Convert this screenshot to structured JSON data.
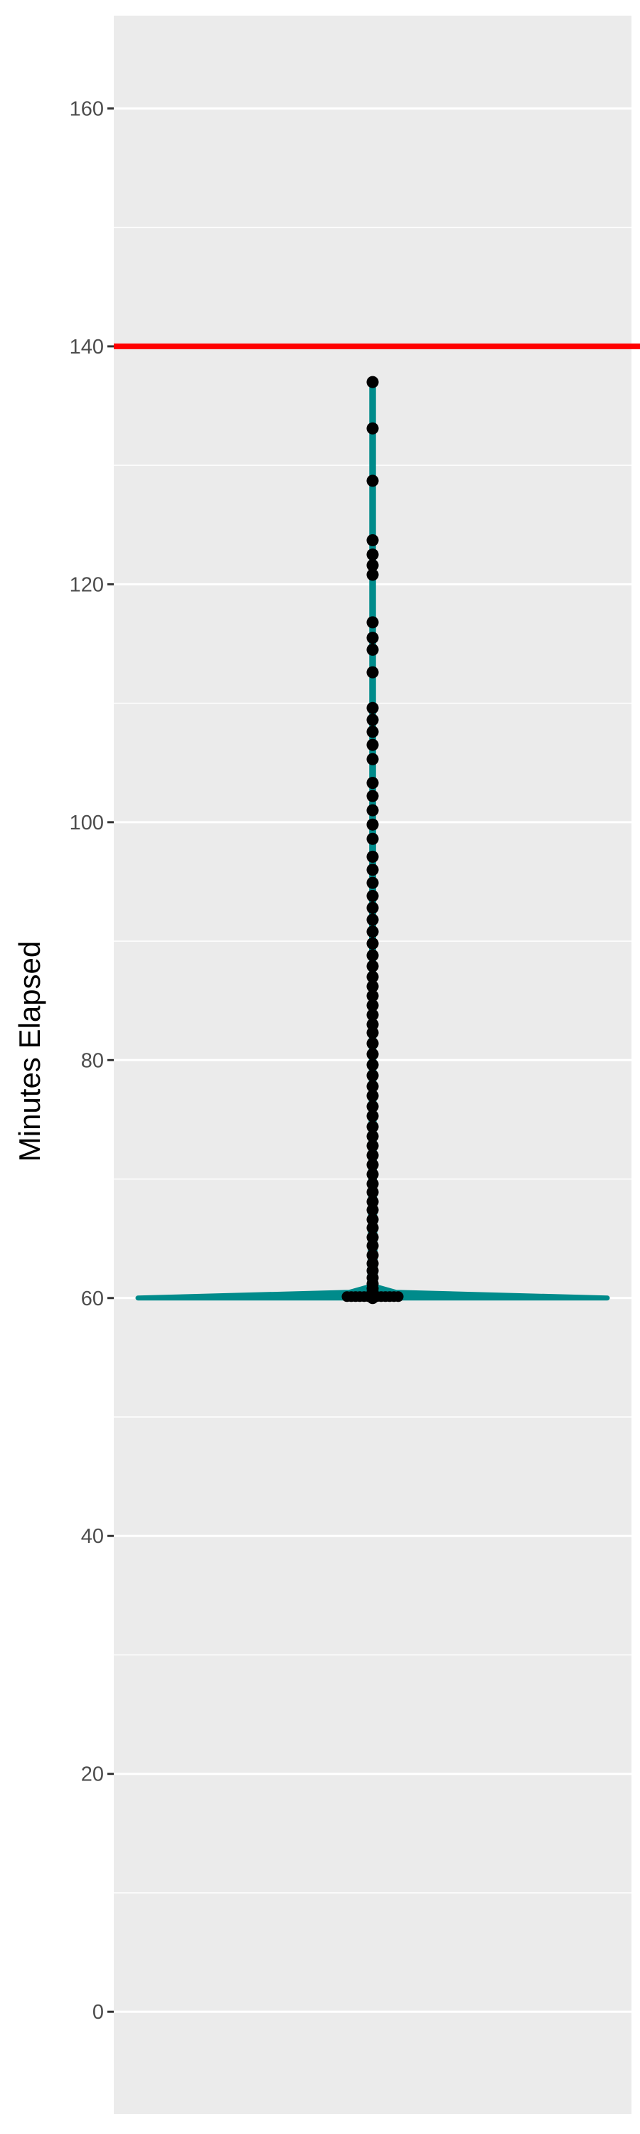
{
  "chart_data": {
    "type": "violin-with-points",
    "title": "",
    "xlabel": "",
    "ylabel": "Minutes Elapsed",
    "ylim": [
      -8.6,
      167.8
    ],
    "yticks": [
      0,
      20,
      40,
      60,
      80,
      100,
      120,
      140,
      160
    ],
    "ytick_labels": [
      "0",
      "20",
      "40",
      "60",
      "80",
      "100",
      "120",
      "140",
      "160"
    ],
    "grid": true,
    "reference_line": {
      "y": 140,
      "color": "#ff0000"
    },
    "violin": {
      "color": "#008b8b",
      "min": 60,
      "max": 137,
      "mode": 60.2
    },
    "points": [
      60.0,
      60.1,
      60.2,
      60.3,
      60.5,
      60.8,
      61.2,
      61.7,
      62.3,
      62.9,
      63.6,
      64.4,
      65.1,
      65.9,
      66.6,
      67.4,
      68.1,
      68.9,
      69.6,
      70.4,
      71.2,
      72.0,
      72.8,
      73.6,
      74.4,
      75.3,
      76.1,
      77.0,
      77.8,
      78.7,
      79.6,
      80.5,
      81.4,
      82.3,
      83.0,
      83.8,
      84.6,
      85.4,
      86.2,
      87.0,
      87.9,
      88.8,
      89.8,
      90.8,
      91.8,
      92.8,
      93.8,
      94.9,
      96.0,
      97.1,
      98.6,
      99.8,
      101.0,
      102.2,
      103.3,
      105.3,
      106.5,
      107.6,
      108.6,
      109.6,
      112.6,
      114.5,
      115.5,
      116.8,
      120.8,
      121.6,
      122.5,
      123.7,
      128.7,
      133.1,
      137.0
    ],
    "points_color": "#000000"
  }
}
